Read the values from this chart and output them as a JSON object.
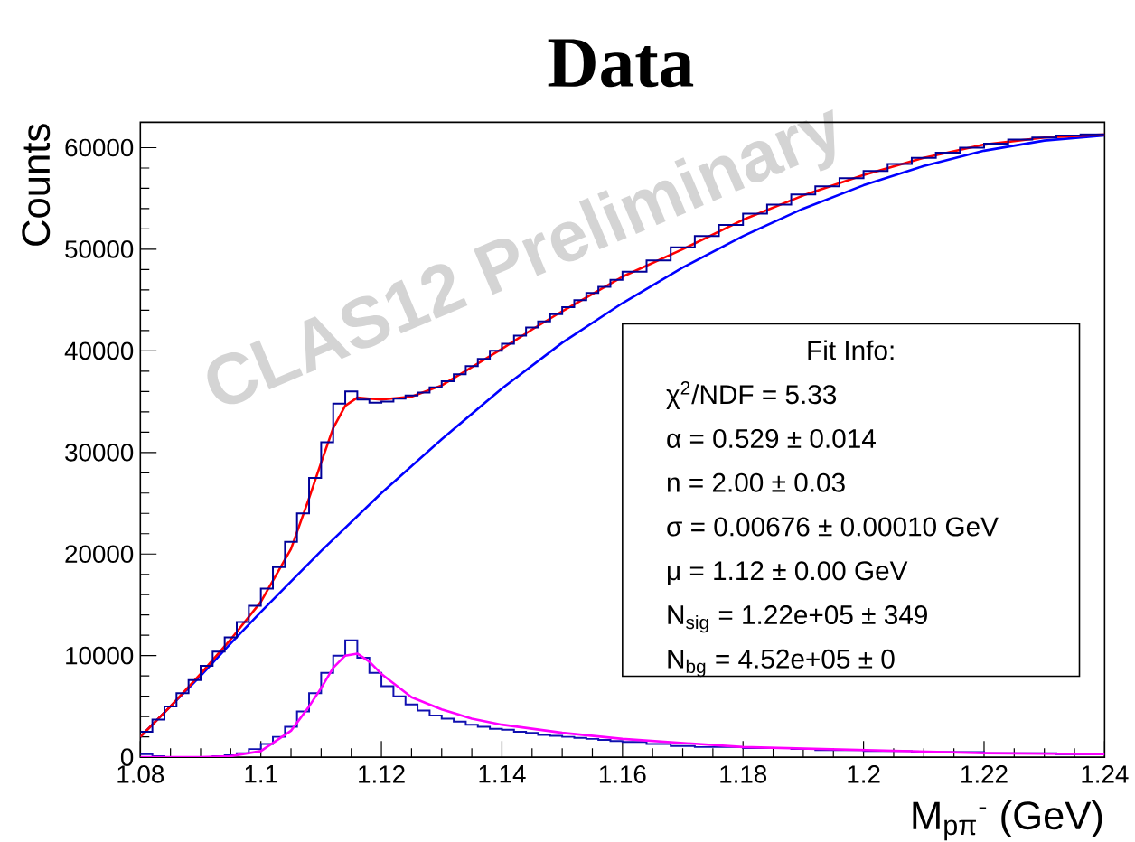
{
  "chart_data": {
    "type": "histogram",
    "title": "Data",
    "xlabel": "M$_{pπ}$$^{-}$ (GeV)",
    "ylabel": "Counts",
    "xlim": [
      1.08,
      1.24
    ],
    "xticks": [
      1.08,
      1.1,
      1.12,
      1.14,
      1.16,
      1.18,
      1.2,
      1.22,
      1.24
    ],
    "ylim": [
      0,
      62500
    ],
    "yticks": [
      0,
      10000,
      20000,
      30000,
      40000,
      50000,
      60000
    ],
    "series": [
      {
        "type": "line",
        "color": "#0000ff",
        "x": [
          1.08,
          1.085,
          1.09,
          1.095,
          1.1,
          1.11,
          1.12,
          1.13,
          1.14,
          1.15,
          1.16,
          1.17,
          1.18,
          1.19,
          1.2,
          1.21,
          1.22,
          1.23,
          1.24
        ],
        "values": [
          2000,
          5000,
          8000,
          11200,
          14300,
          20300,
          26000,
          31300,
          36300,
          40800,
          44700,
          48200,
          51300,
          54000,
          56300,
          58200,
          59700,
          60700,
          61200
        ]
      },
      {
        "type": "line",
        "color": "#ff0000",
        "x": [
          1.08,
          1.085,
          1.09,
          1.095,
          1.1,
          1.105,
          1.108,
          1.11,
          1.112,
          1.114,
          1.116,
          1.118,
          1.12,
          1.125,
          1.13,
          1.135,
          1.14,
          1.145,
          1.15,
          1.155,
          1.16,
          1.17,
          1.18,
          1.19,
          1.2,
          1.21,
          1.22,
          1.23,
          1.24
        ],
        "values": [
          2000,
          5000,
          8200,
          11600,
          15300,
          20500,
          25500,
          29000,
          32400,
          34600,
          35400,
          35300,
          35200,
          35500,
          36600,
          38400,
          40200,
          42100,
          43900,
          45600,
          47300,
          50000,
          52900,
          55300,
          57300,
          59000,
          60300,
          61000,
          61300
        ]
      },
      {
        "color": "#000099",
        "bins": [
          1.08,
          1.082,
          1.084,
          1.086,
          1.088,
          1.09,
          1.092,
          1.094,
          1.096,
          1.098,
          1.1,
          1.102,
          1.104,
          1.106,
          1.108,
          1.11,
          1.112,
          1.114,
          1.116,
          1.118,
          1.12,
          1.122,
          1.124,
          1.126,
          1.128,
          1.13,
          1.132,
          1.134,
          1.136,
          1.138,
          1.14,
          1.142,
          1.144,
          1.146,
          1.148,
          1.15,
          1.152,
          1.154,
          1.156,
          1.158,
          1.16,
          1.164,
          1.168,
          1.172,
          1.176,
          1.18,
          1.184,
          1.188,
          1.192,
          1.196,
          1.2,
          1.204,
          1.208,
          1.212,
          1.216,
          1.22,
          1.224,
          1.228,
          1.232,
          1.236,
          1.24
        ],
        "values": [
          2500,
          3700,
          5000,
          6300,
          7600,
          9000,
          10400,
          11800,
          13300,
          14900,
          16600,
          18700,
          21200,
          24000,
          27500,
          31000,
          34800,
          36000,
          35200,
          34900,
          35000,
          35300,
          35600,
          35900,
          36400,
          37000,
          37700,
          38500,
          39200,
          40000,
          40700,
          41500,
          42300,
          42900,
          43600,
          44300,
          45000,
          45700,
          46300,
          47000,
          47800,
          48900,
          50200,
          51300,
          52400,
          53500,
          54400,
          55400,
          56200,
          57000,
          57700,
          58400,
          59000,
          59500,
          60000,
          60400,
          60800,
          61000,
          61200,
          61300
        ]
      },
      {
        "color": "#1010b0",
        "bins": [
          1.08,
          1.082,
          1.084,
          1.086,
          1.088,
          1.09,
          1.092,
          1.094,
          1.096,
          1.098,
          1.1,
          1.102,
          1.104,
          1.106,
          1.108,
          1.11,
          1.112,
          1.114,
          1.116,
          1.118,
          1.12,
          1.122,
          1.124,
          1.126,
          1.128,
          1.13,
          1.132,
          1.134,
          1.136,
          1.138,
          1.14,
          1.142,
          1.144,
          1.146,
          1.148,
          1.15,
          1.152,
          1.154,
          1.156,
          1.158,
          1.16,
          1.164,
          1.168,
          1.172,
          1.176,
          1.18,
          1.184,
          1.188,
          1.192,
          1.196,
          1.2,
          1.204,
          1.208,
          1.212,
          1.216,
          1.22,
          1.224,
          1.228,
          1.232,
          1.236,
          1.24
        ],
        "values": [
          300,
          100,
          0,
          0,
          0,
          0,
          100,
          200,
          400,
          800,
          1300,
          2000,
          3000,
          4500,
          6300,
          8300,
          10000,
          11500,
          9800,
          8300,
          7000,
          6000,
          5200,
          4600,
          4100,
          3800,
          3500,
          3200,
          3000,
          2800,
          2700,
          2500,
          2400,
          2200,
          2100,
          2000,
          1900,
          1800,
          1700,
          1600,
          1500,
          1300,
          1100,
          1000,
          1000,
          900,
          900,
          800,
          700,
          700,
          600,
          600,
          500,
          500,
          500,
          400,
          400,
          400,
          300,
          300
        ]
      },
      {
        "type": "line",
        "color": "#ff00ff",
        "x": [
          1.08,
          1.09,
          1.095,
          1.1,
          1.105,
          1.108,
          1.11,
          1.112,
          1.114,
          1.116,
          1.118,
          1.12,
          1.125,
          1.13,
          1.135,
          1.14,
          1.15,
          1.16,
          1.18,
          1.2,
          1.22,
          1.24
        ],
        "values": [
          0,
          0,
          100,
          600,
          2600,
          5000,
          6800,
          8800,
          10000,
          10200,
          9400,
          8200,
          5900,
          4700,
          3800,
          3200,
          2400,
          1800,
          1000,
          700,
          400,
          300
        ]
      }
    ],
    "annotations": [
      "CLAS12 Preliminary",
      "Fit Info:",
      "χ$^{2}$/NDF = 5.33",
      "α = 0.529 ± 0.014",
      "n = 2.00 ± 0.03",
      "σ = 0.00676 ± 0.00010 GeV",
      "μ = 1.12 ± 0.00 GeV",
      "N$_{sig}$ = 1.22e+05 ± 349",
      "N$_{bg}$ = 4.52e+05 ± 0"
    ]
  }
}
